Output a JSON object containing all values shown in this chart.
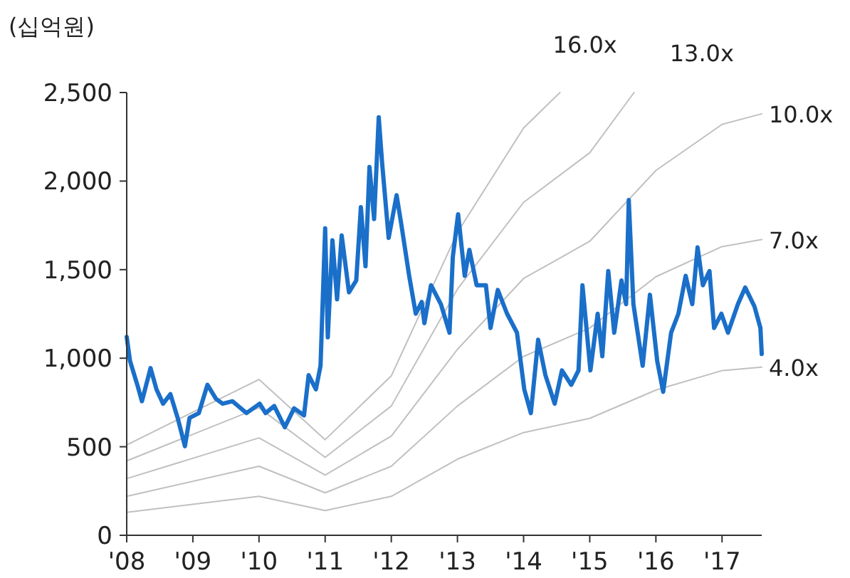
{
  "chart_data": {
    "type": "line",
    "ylabel": "(십억원)",
    "xlim": [
      2008,
      2017.6
    ],
    "xticks": [
      {
        "value": 2008,
        "label": "'08"
      },
      {
        "value": 2009,
        "label": "'09"
      },
      {
        "value": 2010,
        "label": "'10"
      },
      {
        "value": 2011,
        "label": "'11"
      },
      {
        "value": 2012,
        "label": "'12"
      },
      {
        "value": 2013,
        "label": "'13"
      },
      {
        "value": 2014,
        "label": "'14"
      },
      {
        "value": 2015,
        "label": "'15"
      },
      {
        "value": 2016,
        "label": "'16"
      },
      {
        "value": 2017,
        "label": "'17"
      }
    ],
    "ylim": [
      0,
      2500
    ],
    "yticks": [
      {
        "value": 0,
        "label": "0"
      },
      {
        "value": 500,
        "label": "500"
      },
      {
        "value": 1000,
        "label": "1,000"
      },
      {
        "value": 1500,
        "label": "1,500"
      },
      {
        "value": 2000,
        "label": "2,000"
      },
      {
        "value": 2500,
        "label": "2,500"
      }
    ],
    "grid": false,
    "series": [
      {
        "name": "16.0x",
        "color": "#c0c0c0",
        "x": [
          2008,
          2010,
          2011,
          2012,
          2013,
          2014,
          2014.55
        ],
        "values": [
          510,
          880,
          540,
          900,
          1710,
          2300,
          2500
        ]
      },
      {
        "name": "13.0x",
        "color": "#c0c0c0",
        "x": [
          2008,
          2010,
          2011,
          2012,
          2013,
          2014,
          2015,
          2015.67
        ],
        "values": [
          420,
          720,
          440,
          730,
          1390,
          1880,
          2160,
          2500
        ]
      },
      {
        "name": "10.0x",
        "color": "#c0c0c0",
        "x": [
          2008,
          2010,
          2011,
          2012,
          2013,
          2014,
          2015,
          2016,
          2017,
          2017.6
        ],
        "values": [
          320,
          550,
          340,
          560,
          1050,
          1450,
          1660,
          2060,
          2320,
          2380
        ]
      },
      {
        "name": "7.0x",
        "color": "#c0c0c0",
        "x": [
          2008,
          2010,
          2011,
          2012,
          2013,
          2014,
          2015,
          2016,
          2017,
          2017.6
        ],
        "values": [
          220,
          390,
          240,
          390,
          730,
          1010,
          1170,
          1460,
          1630,
          1670
        ]
      },
      {
        "name": "4.0x",
        "color": "#c0c0c0",
        "x": [
          2008,
          2010,
          2011,
          2012,
          2013,
          2014,
          2015,
          2016,
          2017,
          2017.6
        ],
        "values": [
          130,
          220,
          140,
          220,
          430,
          580,
          660,
          820,
          930,
          950
        ]
      },
      {
        "color": "#1a6fc9",
        "x": [
          2008,
          2008.05,
          2008.16,
          2008.23,
          2008.36,
          2008.45,
          2008.55,
          2008.66,
          2008.77,
          2008.88,
          2008.95,
          2009.09,
          2009.22,
          2009.35,
          2009.45,
          2009.6,
          2009.81,
          2010.01,
          2010.1,
          2010.23,
          2010.39,
          2010.53,
          2010.68,
          2010.75,
          2010.86,
          2010.93,
          2011,
          2011.04,
          2011.11,
          2011.18,
          2011.25,
          2011.36,
          2011.47,
          2011.54,
          2011.61,
          2011.67,
          2011.74,
          2011.81,
          2011.86,
          2011.96,
          2012.08,
          2012.15,
          2012.27,
          2012.37,
          2012.46,
          2012.5,
          2012.6,
          2012.75,
          2012.88,
          2012.93,
          2013.01,
          2013.11,
          2013.18,
          2013.29,
          2013.43,
          2013.5,
          2013.61,
          2013.75,
          2013.9,
          2014.01,
          2014.11,
          2014.22,
          2014.33,
          2014.47,
          2014.58,
          2014.72,
          2014.83,
          2014.89,
          2015.01,
          2015.12,
          2015.19,
          2015.28,
          2015.37,
          2015.48,
          2015.55,
          2015.59,
          2015.66,
          2015.8,
          2015.91,
          2016.02,
          2016.11,
          2016.23,
          2016.34,
          2016.45,
          2016.55,
          2016.63,
          2016.71,
          2016.81,
          2016.88,
          2016.99,
          2017.09,
          2017.24,
          2017.35,
          2017.49,
          2017.58,
          2017.6
        ],
        "values": [
          1120,
          984,
          850,
          757,
          944,
          824,
          743,
          797,
          663,
          503,
          663,
          690,
          850,
          770,
          743,
          757,
          690,
          743,
          690,
          730,
          610,
          717,
          677,
          904,
          824,
          957,
          1733,
          1118,
          1666,
          1332,
          1693,
          1372,
          1439,
          1853,
          1519,
          2080,
          1786,
          2360,
          2107,
          1679,
          1920,
          1759,
          1465,
          1251,
          1318,
          1198,
          1412,
          1305,
          1144,
          1572,
          1813,
          1465,
          1612,
          1412,
          1412,
          1171,
          1385,
          1251,
          1144,
          824,
          690,
          1104,
          904,
          743,
          931,
          850,
          931,
          1412,
          931,
          1251,
          1011,
          1492,
          1144,
          1439,
          1305,
          1893,
          1305,
          957,
          1358,
          984,
          810,
          1144,
          1251,
          1465,
          1305,
          1626,
          1412,
          1492,
          1171,
          1251,
          1144,
          1305,
          1399,
          1292,
          1171,
          1024
        ]
      }
    ]
  }
}
